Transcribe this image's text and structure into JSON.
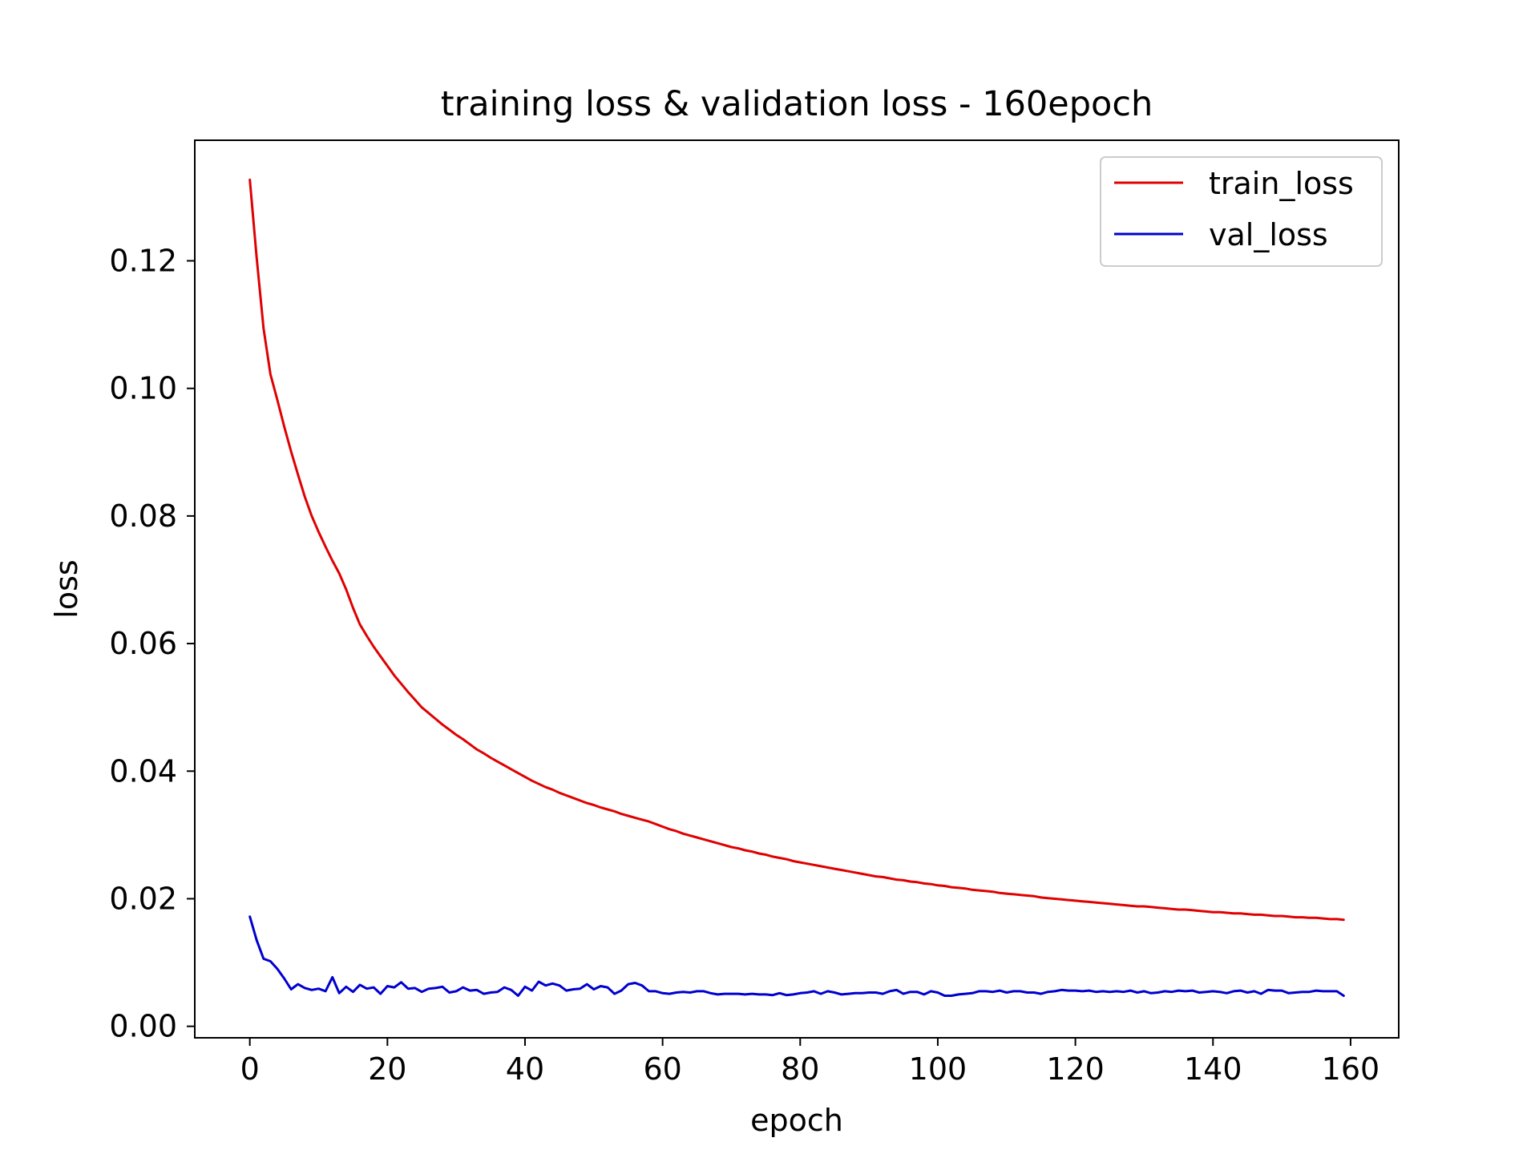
{
  "chart_data": {
    "type": "line",
    "title": "training loss & validation loss - 160epoch",
    "xlabel": "epoch",
    "ylabel": "loss",
    "xlim": [
      -8,
      167
    ],
    "ylim": [
      -0.0018,
      0.1389
    ],
    "xticks": [
      0,
      20,
      40,
      60,
      80,
      100,
      120,
      140,
      160
    ],
    "yticks": [
      0.0,
      0.02,
      0.04,
      0.06,
      0.08,
      0.1,
      0.12
    ],
    "xtick_labels": [
      "0",
      "20",
      "40",
      "60",
      "80",
      "100",
      "120",
      "140",
      "160"
    ],
    "ytick_labels": [
      "0.00",
      "0.02",
      "0.04",
      "0.06",
      "0.08",
      "0.10",
      "0.12"
    ],
    "grid": false,
    "legend_position": "top-right",
    "series": [
      {
        "name": "train_loss",
        "color": "#e00000",
        "x": [
          0,
          1,
          2,
          3,
          4,
          5,
          6,
          7,
          8,
          9,
          10,
          11,
          12,
          13,
          14,
          15,
          16,
          17,
          18,
          19,
          20,
          21,
          22,
          23,
          24,
          25,
          26,
          27,
          28,
          29,
          30,
          31,
          32,
          33,
          34,
          35,
          36,
          37,
          38,
          39,
          40,
          41,
          42,
          43,
          44,
          45,
          46,
          47,
          48,
          49,
          50,
          51,
          52,
          53,
          54,
          55,
          56,
          57,
          58,
          59,
          60,
          61,
          62,
          63,
          64,
          65,
          66,
          67,
          68,
          69,
          70,
          71,
          72,
          73,
          74,
          75,
          76,
          77,
          78,
          79,
          80,
          81,
          82,
          83,
          84,
          85,
          86,
          87,
          88,
          89,
          90,
          91,
          92,
          93,
          94,
          95,
          96,
          97,
          98,
          99,
          100,
          101,
          102,
          103,
          104,
          105,
          106,
          107,
          108,
          109,
          110,
          111,
          112,
          113,
          114,
          115,
          116,
          117,
          118,
          119,
          120,
          121,
          122,
          123,
          124,
          125,
          126,
          127,
          128,
          129,
          130,
          131,
          132,
          133,
          134,
          135,
          136,
          137,
          138,
          139,
          140,
          141,
          142,
          143,
          144,
          145,
          146,
          147,
          148,
          149,
          150,
          151,
          152,
          153,
          154,
          155,
          156,
          157,
          158,
          159
        ],
        "values": [
          0.1327,
          0.1205,
          0.1094,
          0.1022,
          0.0982,
          0.094,
          0.0901,
          0.0865,
          0.083,
          0.08,
          0.0775,
          0.0752,
          0.073,
          0.071,
          0.0685,
          0.0656,
          0.063,
          0.0612,
          0.0595,
          0.058,
          0.0565,
          0.055,
          0.0537,
          0.0524,
          0.0512,
          0.05,
          0.0491,
          0.0482,
          0.0473,
          0.0465,
          0.0457,
          0.045,
          0.0442,
          0.0434,
          0.0428,
          0.0421,
          0.0415,
          0.0409,
          0.0403,
          0.0397,
          0.0391,
          0.0385,
          0.038,
          0.0375,
          0.0371,
          0.0366,
          0.0362,
          0.0358,
          0.0354,
          0.035,
          0.0347,
          0.0343,
          0.034,
          0.0337,
          0.0333,
          0.033,
          0.0327,
          0.0324,
          0.0321,
          0.0317,
          0.0313,
          0.0309,
          0.0306,
          0.0302,
          0.0299,
          0.0296,
          0.0293,
          0.029,
          0.0287,
          0.0284,
          0.0281,
          0.0279,
          0.0276,
          0.0274,
          0.0271,
          0.0269,
          0.0266,
          0.0264,
          0.0262,
          0.0259,
          0.0257,
          0.0255,
          0.0253,
          0.0251,
          0.0249,
          0.0247,
          0.0245,
          0.0243,
          0.0241,
          0.0239,
          0.0237,
          0.0235,
          0.0234,
          0.0232,
          0.023,
          0.0229,
          0.0227,
          0.0226,
          0.0224,
          0.0223,
          0.0221,
          0.022,
          0.0218,
          0.0217,
          0.0216,
          0.0214,
          0.0213,
          0.0212,
          0.0211,
          0.0209,
          0.0208,
          0.0207,
          0.0206,
          0.0205,
          0.0204,
          0.0202,
          0.0201,
          0.02,
          0.0199,
          0.0198,
          0.0197,
          0.0196,
          0.0195,
          0.0194,
          0.0193,
          0.0192,
          0.0191,
          0.019,
          0.0189,
          0.0188,
          0.0188,
          0.0187,
          0.0186,
          0.0185,
          0.0184,
          0.0183,
          0.0183,
          0.0182,
          0.0181,
          0.018,
          0.0179,
          0.0179,
          0.0178,
          0.0177,
          0.0177,
          0.0176,
          0.0175,
          0.0175,
          0.0174,
          0.0173,
          0.0173,
          0.0172,
          0.0171,
          0.0171,
          0.017,
          0.017,
          0.0169,
          0.0168,
          0.0168,
          0.0167
        ]
      },
      {
        "name": "val_loss",
        "color": "#0000d0",
        "x": [
          0,
          1,
          2,
          3,
          4,
          5,
          6,
          7,
          8,
          9,
          10,
          11,
          12,
          13,
          14,
          15,
          16,
          17,
          18,
          19,
          20,
          21,
          22,
          23,
          24,
          25,
          26,
          27,
          28,
          29,
          30,
          31,
          32,
          33,
          34,
          35,
          36,
          37,
          38,
          39,
          40,
          41,
          42,
          43,
          44,
          45,
          46,
          47,
          48,
          49,
          50,
          51,
          52,
          53,
          54,
          55,
          56,
          57,
          58,
          59,
          60,
          61,
          62,
          63,
          64,
          65,
          66,
          67,
          68,
          69,
          70,
          71,
          72,
          73,
          74,
          75,
          76,
          77,
          78,
          79,
          80,
          81,
          82,
          83,
          84,
          85,
          86,
          87,
          88,
          89,
          90,
          91,
          92,
          93,
          94,
          95,
          96,
          97,
          98,
          99,
          100,
          101,
          102,
          103,
          104,
          105,
          106,
          107,
          108,
          109,
          110,
          111,
          112,
          113,
          114,
          115,
          116,
          117,
          118,
          119,
          120,
          121,
          122,
          123,
          124,
          125,
          126,
          127,
          128,
          129,
          130,
          131,
          132,
          133,
          134,
          135,
          136,
          137,
          138,
          139,
          140,
          141,
          142,
          143,
          144,
          145,
          146,
          147,
          148,
          149,
          150,
          151,
          152,
          153,
          154,
          155,
          156,
          157,
          158,
          159
        ],
        "values": [
          0.0172,
          0.0135,
          0.0106,
          0.0102,
          0.009,
          0.0075,
          0.0058,
          0.0066,
          0.006,
          0.0057,
          0.0059,
          0.0055,
          0.0077,
          0.0052,
          0.0062,
          0.0054,
          0.0065,
          0.0059,
          0.0061,
          0.0051,
          0.0063,
          0.0061,
          0.0069,
          0.0059,
          0.006,
          0.0054,
          0.0059,
          0.006,
          0.0062,
          0.0053,
          0.0055,
          0.0061,
          0.0056,
          0.0057,
          0.0051,
          0.0053,
          0.0054,
          0.0061,
          0.0057,
          0.0048,
          0.0062,
          0.0056,
          0.007,
          0.0064,
          0.0067,
          0.0064,
          0.0056,
          0.0058,
          0.0059,
          0.0066,
          0.0058,
          0.0063,
          0.0061,
          0.0051,
          0.0056,
          0.0066,
          0.0068,
          0.0064,
          0.0055,
          0.0055,
          0.0052,
          0.0051,
          0.0053,
          0.0054,
          0.0053,
          0.0055,
          0.0055,
          0.0052,
          0.005,
          0.0051,
          0.0051,
          0.0051,
          0.005,
          0.0051,
          0.005,
          0.005,
          0.0049,
          0.0052,
          0.0049,
          0.005,
          0.0052,
          0.0053,
          0.0055,
          0.0051,
          0.0055,
          0.0053,
          0.005,
          0.0051,
          0.0052,
          0.0052,
          0.0053,
          0.0053,
          0.0051,
          0.0055,
          0.0057,
          0.0051,
          0.0054,
          0.0054,
          0.005,
          0.0055,
          0.0053,
          0.0048,
          0.0048,
          0.005,
          0.0051,
          0.0052,
          0.0055,
          0.0055,
          0.0054,
          0.0056,
          0.0053,
          0.0055,
          0.0055,
          0.0053,
          0.0053,
          0.0051,
          0.0054,
          0.0055,
          0.0057,
          0.0056,
          0.0056,
          0.0055,
          0.0056,
          0.0054,
          0.0055,
          0.0054,
          0.0055,
          0.0054,
          0.0056,
          0.0053,
          0.0055,
          0.0052,
          0.0053,
          0.0055,
          0.0054,
          0.0056,
          0.0055,
          0.0056,
          0.0053,
          0.0054,
          0.0055,
          0.0054,
          0.0052,
          0.0055,
          0.0056,
          0.0053,
          0.0055,
          0.0051,
          0.0057,
          0.0056,
          0.0056,
          0.0052,
          0.0053,
          0.0054,
          0.0054,
          0.0056,
          0.0055,
          0.0055,
          0.0055,
          0.0048
        ]
      }
    ]
  }
}
